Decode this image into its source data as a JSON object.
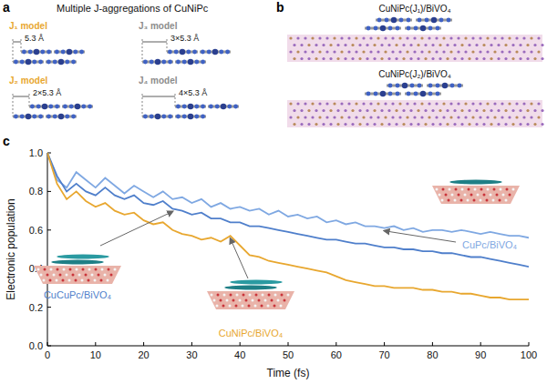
{
  "panel_a": {
    "letter": "a",
    "title": "Multiple J-aggregations of CuNiPc",
    "models": [
      {
        "label": "J₁ model",
        "spacing": "5.3 Å"
      },
      {
        "label": "J₃ model",
        "spacing": "3×5.3 Å"
      },
      {
        "label": "J₂ model",
        "spacing": "2×5.3 Å"
      },
      {
        "label": "J₄ model",
        "spacing": "4×5.3 Å"
      }
    ]
  },
  "panel_b": {
    "letter": "b",
    "structures": [
      "CuNiPc(J₁)/BiVO₄",
      "CuNiPc(J₂)/BiVO₄"
    ]
  },
  "panel_c": {
    "letter": "c"
  },
  "chart_data": {
    "type": "line",
    "x_label": "Time (fs)",
    "y_label": "Electronic population",
    "x": [
      0,
      2,
      4,
      6,
      8,
      10,
      12,
      14,
      16,
      18,
      20,
      22,
      24,
      26,
      28,
      30,
      32,
      34,
      36,
      38,
      40,
      42,
      44,
      46,
      48,
      50,
      52,
      54,
      56,
      58,
      60,
      62,
      64,
      66,
      68,
      70,
      72,
      74,
      76,
      78,
      80,
      82,
      84,
      86,
      88,
      90,
      92,
      94,
      96,
      98,
      100
    ],
    "xlim": [
      0,
      100
    ],
    "xticks": [
      0,
      10,
      20,
      30,
      40,
      50,
      60,
      70,
      80,
      90,
      100
    ],
    "ylim": [
      0,
      1
    ],
    "yticks": [
      {
        "value": 0,
        "label": "0.0"
      },
      0.2,
      0.4,
      0.6,
      0.8,
      {
        "value": 1,
        "label": "1.0"
      }
    ],
    "series": [
      {
        "name": "CuPc/BiVO₄",
        "color": "#7fa8e2",
        "values": [
          1.0,
          0.86,
          0.82,
          0.9,
          0.86,
          0.82,
          0.87,
          0.83,
          0.79,
          0.83,
          0.8,
          0.77,
          0.8,
          0.76,
          0.77,
          0.74,
          0.76,
          0.72,
          0.74,
          0.71,
          0.72,
          0.7,
          0.71,
          0.68,
          0.7,
          0.67,
          0.68,
          0.66,
          0.67,
          0.64,
          0.65,
          0.63,
          0.64,
          0.62,
          0.62,
          0.61,
          0.62,
          0.6,
          0.61,
          0.59,
          0.6,
          0.6,
          0.59,
          0.6,
          0.59,
          0.58,
          0.59,
          0.58,
          0.57,
          0.57,
          0.56
        ]
      },
      {
        "name": "CuCuPc/BiVO₄",
        "color": "#4f7fcb",
        "values": [
          1.0,
          0.88,
          0.8,
          0.84,
          0.8,
          0.78,
          0.82,
          0.78,
          0.76,
          0.78,
          0.74,
          0.73,
          0.75,
          0.71,
          0.7,
          0.68,
          0.69,
          0.66,
          0.66,
          0.64,
          0.64,
          0.62,
          0.62,
          0.61,
          0.6,
          0.59,
          0.58,
          0.57,
          0.56,
          0.55,
          0.55,
          0.54,
          0.53,
          0.53,
          0.52,
          0.51,
          0.51,
          0.5,
          0.5,
          0.49,
          0.49,
          0.48,
          0.48,
          0.47,
          0.46,
          0.46,
          0.45,
          0.44,
          0.43,
          0.42,
          0.41
        ]
      },
      {
        "name": "CuNiPc/BiVO₄",
        "color": "#e8a72f",
        "values": [
          1.0,
          0.84,
          0.76,
          0.8,
          0.75,
          0.72,
          0.74,
          0.7,
          0.68,
          0.69,
          0.65,
          0.63,
          0.64,
          0.6,
          0.58,
          0.57,
          0.55,
          0.56,
          0.54,
          0.57,
          0.52,
          0.47,
          0.46,
          0.44,
          0.43,
          0.42,
          0.41,
          0.4,
          0.39,
          0.38,
          0.36,
          0.34,
          0.33,
          0.32,
          0.31,
          0.31,
          0.3,
          0.3,
          0.3,
          0.29,
          0.29,
          0.28,
          0.28,
          0.27,
          0.27,
          0.26,
          0.25,
          0.25,
          0.24,
          0.24,
          0.24
        ]
      }
    ]
  }
}
